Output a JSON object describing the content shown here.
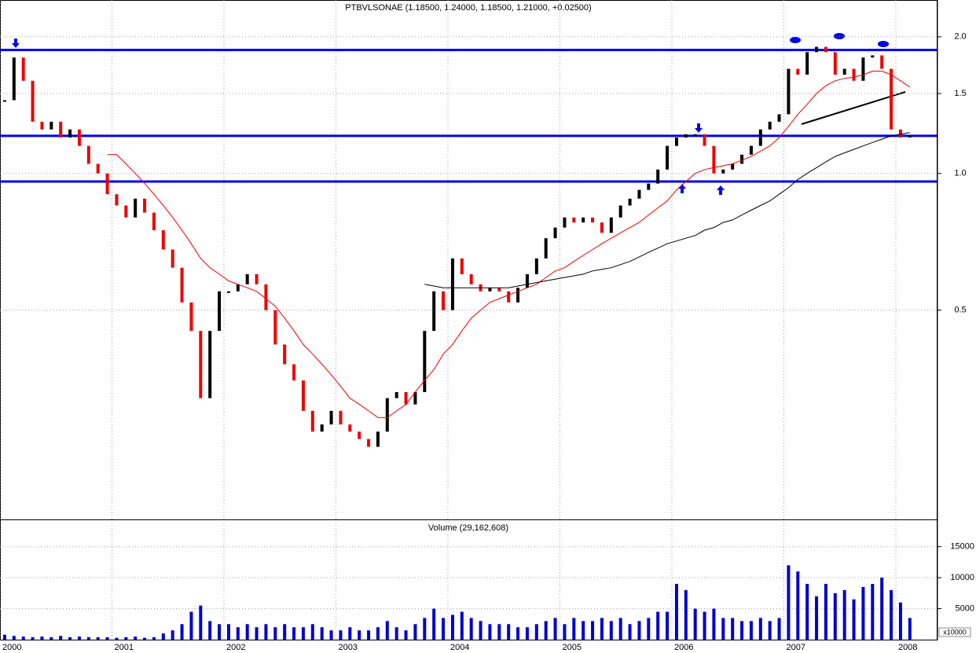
{
  "chart_data": [
    {
      "type": "price",
      "title": "PTBVLSONAE (1.18500, 1.24000, 1.18500, 1.21000, +0.02500)",
      "log_scale": true,
      "grid": true,
      "categories": [
        "2000",
        null,
        null,
        null,
        null,
        null,
        null,
        null,
        null,
        null,
        null,
        null,
        "2001",
        null,
        null,
        null,
        null,
        null,
        null,
        null,
        null,
        null,
        null,
        null,
        "2002",
        null,
        null,
        null,
        null,
        null,
        null,
        null,
        null,
        null,
        null,
        null,
        "2003",
        null,
        null,
        null,
        null,
        null,
        null,
        null,
        null,
        null,
        null,
        null,
        "2004",
        null,
        null,
        null,
        null,
        null,
        null,
        null,
        null,
        null,
        null,
        null,
        "2005",
        null,
        null,
        null,
        null,
        null,
        null,
        null,
        null,
        null,
        null,
        null,
        "2006",
        null,
        null,
        null,
        null,
        null,
        null,
        null,
        null,
        null,
        null,
        null,
        "2007",
        null,
        null,
        null,
        null,
        null,
        null,
        null,
        null,
        null,
        null,
        null,
        "2008",
        null
      ],
      "ylim": [
        0.173,
        2.41
      ],
      "yticks": [
        0.5,
        {
          "value": 1,
          "label": "1.0"
        },
        1.5,
        {
          "value": 2,
          "label": "2.0"
        }
      ],
      "levels": [
        1.87,
        1.21,
        0.96
      ],
      "levels_color": "#0000ee",
      "series": [
        {
          "color": "#000000",
          "down_color": "#ee0000",
          "values": [
            1.45,
            1.8,
            1.6,
            1.3,
            1.25,
            1.3,
            1.2,
            1.25,
            1.15,
            1.05,
            1.0,
            0.9,
            0.85,
            0.8,
            0.88,
            0.82,
            0.75,
            0.68,
            0.62,
            0.52,
            0.45,
            0.32,
            0.45,
            0.55,
            0.55,
            0.57,
            0.6,
            0.57,
            0.5,
            0.42,
            0.38,
            0.35,
            0.3,
            0.27,
            0.28,
            0.3,
            0.28,
            0.27,
            0.26,
            0.25,
            0.27,
            0.32,
            0.33,
            0.31,
            0.33,
            0.45,
            0.55,
            0.5,
            0.65,
            0.6,
            0.57,
            0.55,
            0.56,
            0.55,
            0.52,
            0.56,
            0.6,
            0.65,
            0.72,
            0.76,
            0.8,
            0.78,
            0.8,
            0.78,
            0.74,
            0.8,
            0.85,
            0.88,
            0.92,
            0.95,
            1.02,
            1.15,
            1.2,
            1.22,
            1.22,
            1.15,
            1.0,
            1.02,
            1.05,
            1.1,
            1.15,
            1.25,
            1.3,
            1.35,
            1.7,
            1.65,
            1.85,
            1.9,
            1.85,
            1.65,
            1.7,
            1.6,
            1.8,
            1.82,
            1.7,
            1.25,
            1.2,
            1.21
          ]
        },
        {
          "color": "#ee0000",
          "values": [
            null,
            null,
            null,
            null,
            null,
            null,
            null,
            null,
            null,
            null,
            null,
            1.1,
            1.1,
            1.05,
            1.0,
            0.95,
            0.9,
            0.85,
            0.8,
            0.75,
            0.7,
            0.65,
            0.62,
            0.6,
            0.58,
            0.57,
            0.56,
            0.55,
            0.53,
            0.51,
            0.48,
            0.45,
            0.42,
            0.4,
            0.38,
            0.36,
            0.34,
            0.32,
            0.31,
            0.3,
            0.29,
            0.29,
            0.3,
            0.31,
            0.33,
            0.35,
            0.37,
            0.4,
            0.42,
            0.45,
            0.48,
            0.5,
            0.52,
            0.53,
            0.54,
            0.55,
            0.56,
            0.57,
            0.59,
            0.61,
            0.62,
            0.64,
            0.66,
            0.68,
            0.7,
            0.72,
            0.74,
            0.76,
            0.78,
            0.81,
            0.84,
            0.87,
            0.92,
            0.96,
            1.0,
            1.02,
            1.03,
            1.04,
            1.05,
            1.07,
            1.09,
            1.12,
            1.15,
            1.2,
            1.27,
            1.35,
            1.42,
            1.5,
            1.56,
            1.6,
            1.62,
            1.63,
            1.65,
            1.68,
            1.68,
            1.65,
            1.6,
            1.55
          ]
        },
        {
          "color": "#000000",
          "values": [
            null,
            null,
            null,
            null,
            null,
            null,
            null,
            null,
            null,
            null,
            null,
            null,
            null,
            null,
            null,
            null,
            null,
            null,
            null,
            null,
            null,
            null,
            null,
            null,
            null,
            null,
            null,
            null,
            null,
            null,
            null,
            null,
            null,
            null,
            null,
            null,
            null,
            null,
            null,
            null,
            null,
            null,
            null,
            null,
            null,
            0.57,
            0.565,
            0.56,
            0.56,
            0.56,
            0.56,
            0.56,
            0.56,
            0.56,
            0.56,
            0.565,
            0.57,
            0.575,
            0.58,
            0.585,
            0.59,
            0.595,
            0.6,
            0.61,
            0.615,
            0.62,
            0.63,
            0.64,
            0.655,
            0.67,
            0.685,
            0.7,
            0.71,
            0.72,
            0.73,
            0.75,
            0.76,
            0.78,
            0.79,
            0.81,
            0.83,
            0.85,
            0.87,
            0.9,
            0.93,
            0.97,
            1.0,
            1.03,
            1.06,
            1.09,
            1.11,
            1.13,
            1.15,
            1.17,
            1.19,
            1.21,
            1.22,
            1.23
          ]
        }
      ]
    },
    {
      "type": "bar",
      "title": "Volume (29,162,608)",
      "unit_label": "x10000",
      "color": "#0000cc",
      "ylim": [
        0,
        19400
      ],
      "yticks": [
        5000,
        10000,
        15000
      ],
      "values": [
        800,
        600,
        500,
        400,
        500,
        400,
        600,
        400,
        500,
        400,
        400,
        400,
        300,
        400,
        500,
        300,
        400,
        1000,
        1500,
        2500,
        4500,
        5500,
        3000,
        2500,
        2500,
        2000,
        2500,
        2000,
        2500,
        2000,
        2500,
        2000,
        2000,
        2500,
        2000,
        1500,
        1500,
        2000,
        1500,
        1500,
        2000,
        3000,
        2000,
        1500,
        2500,
        3500,
        5000,
        3500,
        4000,
        4500,
        3500,
        3000,
        2500,
        2500,
        2500,
        2000,
        2000,
        2500,
        3000,
        3500,
        2500,
        3500,
        3000,
        3000,
        3500,
        3000,
        3500,
        2500,
        3000,
        3500,
        4500,
        4500,
        9000,
        8000,
        5000,
        4500,
        5000,
        3500,
        3500,
        3000,
        3000,
        3500,
        3000,
        3500,
        12000,
        11000,
        9000,
        7000,
        9000,
        7500,
        8000,
        6500,
        8500,
        9000,
        10000,
        8000,
        6000,
        3500
      ]
    }
  ]
}
